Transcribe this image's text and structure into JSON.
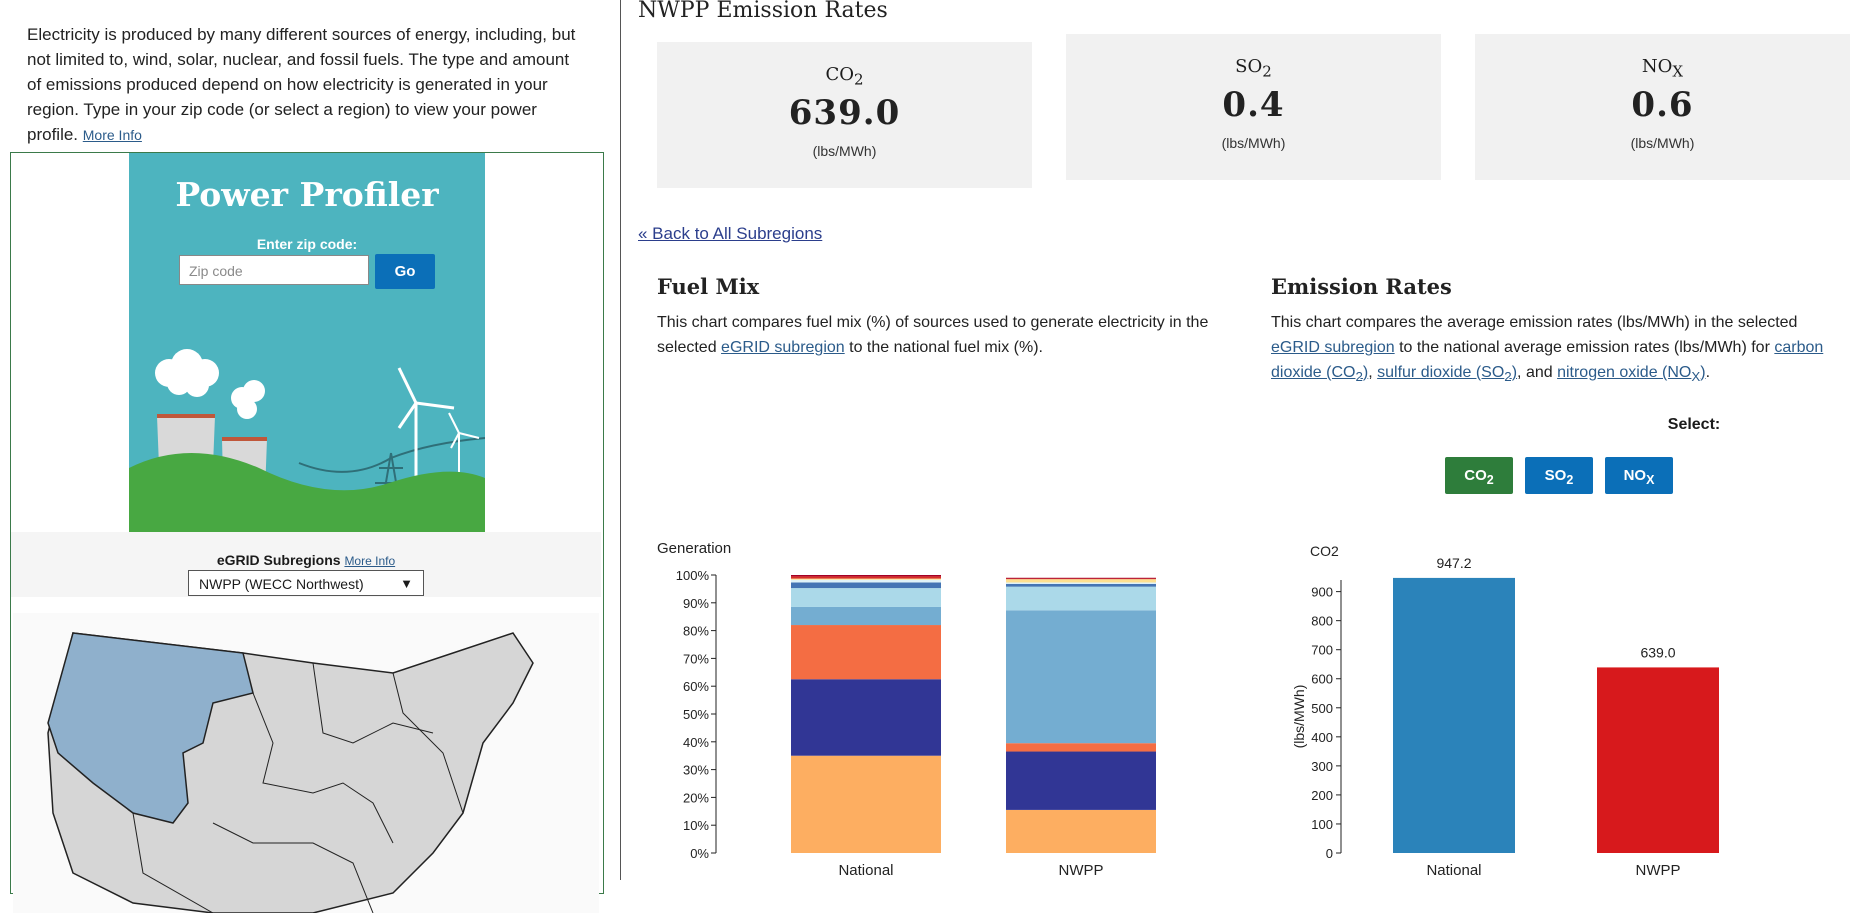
{
  "intro": {
    "text": "Electricity is produced by many different sources of energy, including, but not limited to, wind, solar, nuclear, and fossil fuels. The type and amount of emissions produced depend on how electricity is generated in your region. Type in your zip code (or select a region) to view your power profile.",
    "more_info": "More Info"
  },
  "profiler": {
    "title": "Power Profiler",
    "zip_label": "Enter zip code:",
    "zip_placeholder": "Zip code",
    "go_label": "Go",
    "subregions_label": "eGRID Subregions",
    "subregions_more_info": "More Info",
    "selected_subregion": "NWPP (WECC Northwest)"
  },
  "emission_rates": {
    "title": "NWPP Emission Rates",
    "cards": [
      {
        "name": "CO",
        "sub": "2",
        "value": "639.0",
        "unit": "(lbs/MWh)"
      },
      {
        "name": "SO",
        "sub": "2",
        "value": "0.4",
        "unit": "(lbs/MWh)"
      },
      {
        "name": "NO",
        "sub": "X",
        "value": "0.6",
        "unit": "(lbs/MWh)"
      }
    ]
  },
  "back_link": "« Back to All Subregions",
  "fuel_mix": {
    "heading": "Fuel Mix",
    "text_before": "This chart compares fuel mix (%) of sources used to generate electricity in the selected ",
    "link": "eGRID subregion",
    "text_after": " to the national fuel mix (%)."
  },
  "emission_section": {
    "heading": "Emission Rates",
    "text_1": "This chart compares the average emission rates (lbs/MWh) in the selected ",
    "link_1": "eGRID subregion",
    "text_2": " to the national average emission rates (lbs/MWh) for ",
    "link_co2": "carbon dioxide (CO",
    "link_so2": "sulfur dioxide (SO",
    "link_nox": "nitrogen oxide (NO",
    "sub_2": "2",
    "sub_x": "X",
    "close_paren": ")",
    "comma": ", ",
    "and": ", and ",
    "period": ".",
    "select_label": "Select:",
    "buttons": [
      {
        "name": "CO",
        "sub": "2",
        "color": "#2e7d3b"
      },
      {
        "name": "SO",
        "sub": "2",
        "color": "#0b6fb8"
      },
      {
        "name": "NO",
        "sub": "X",
        "color": "#0b6fb8"
      }
    ]
  },
  "chart_data": [
    {
      "type": "bar",
      "stacked": true,
      "ylabel": "Generation",
      "ylim": [
        0,
        100
      ],
      "yticks": [
        "0%",
        "10%",
        "20%",
        "30%",
        "40%",
        "50%",
        "60%",
        "70%",
        "80%",
        "90%",
        "100%"
      ],
      "categories": [
        "National",
        "NWPP"
      ],
      "series": [
        {
          "values": [
            35,
            15.5
          ],
          "color": "#fdae61"
        },
        {
          "values": [
            27.5,
            21
          ],
          "color": "#313695"
        },
        {
          "values": [
            0,
            3
          ],
          "color": "#f46d43"
        },
        {
          "values": [
            0,
            47.8
          ],
          "color": "#74add1"
        },
        {
          "values": [
            19.5,
            0
          ],
          "color": "#f46d43"
        },
        {
          "values": [
            6.5,
            0
          ],
          "color": "#74add1"
        },
        {
          "values": [
            6.8,
            8.5
          ],
          "color": "#abd9e9"
        },
        {
          "values": [
            2,
            1
          ],
          "color": "#4575b4"
        },
        {
          "values": [
            1,
            0.5
          ],
          "color": "#e0f3f8"
        },
        {
          "values": [
            0.4,
            1.2
          ],
          "color": "#fee090"
        },
        {
          "values": [
            0.8,
            0.2
          ],
          "color": "#d73027"
        },
        {
          "values": [
            0.5,
            0.3
          ],
          "color": "#a50026"
        }
      ]
    },
    {
      "type": "bar",
      "title": "CO2",
      "ylabel": "(lbs/MWh)",
      "ylim": [
        0,
        940
      ],
      "yticks": [
        0,
        100,
        200,
        300,
        400,
        500,
        600,
        700,
        800,
        900
      ],
      "categories": [
        "National",
        "NWPP"
      ],
      "values": [
        947.2,
        639.0
      ],
      "value_labels": [
        "947.2",
        "639.0"
      ],
      "colors": [
        "#2b83ba",
        "#d7191c"
      ]
    }
  ]
}
